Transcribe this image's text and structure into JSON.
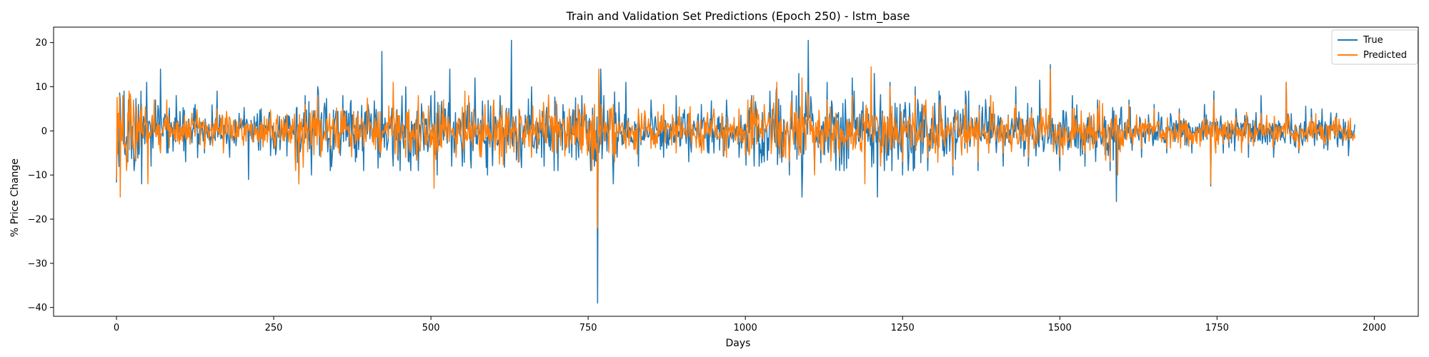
{
  "chart_data": {
    "type": "line",
    "title": "Train and Validation Set Predictions (Epoch 250) - lstm_base",
    "xlabel": "Days",
    "ylabel": "% Price Change",
    "xlim": [
      -100,
      2070
    ],
    "ylim": [
      -42,
      23.5
    ],
    "x_ticks": [
      0,
      250,
      500,
      750,
      1000,
      1250,
      1500,
      1750,
      2000
    ],
    "y_ticks": [
      -40,
      -30,
      -20,
      -10,
      0,
      10,
      20
    ],
    "grid": false,
    "legend_position": "top-right",
    "n_points": 1970,
    "series": [
      {
        "name": "True",
        "color": "#1f77b4",
        "keypoints": [
          [
            0,
            -11.7
          ],
          [
            3,
            -3
          ],
          [
            5,
            8.6
          ],
          [
            8,
            -2
          ],
          [
            12,
            9
          ],
          [
            18,
            -7
          ],
          [
            22,
            8
          ],
          [
            28,
            -9
          ],
          [
            35,
            6
          ],
          [
            40,
            -12
          ],
          [
            48,
            11
          ],
          [
            55,
            -8
          ],
          [
            62,
            7
          ],
          [
            70,
            14
          ],
          [
            80,
            -5
          ],
          [
            95,
            8
          ],
          [
            110,
            -7
          ],
          [
            125,
            6
          ],
          [
            140,
            -5
          ],
          [
            160,
            9
          ],
          [
            180,
            -6
          ],
          [
            195,
            4
          ],
          [
            210,
            -11
          ],
          [
            230,
            5
          ],
          [
            250,
            -4
          ],
          [
            270,
            3
          ],
          [
            285,
            -2
          ],
          [
            290,
            -12
          ],
          [
            300,
            8
          ],
          [
            310,
            -10
          ],
          [
            320,
            10
          ],
          [
            340,
            -9
          ],
          [
            360,
            8
          ],
          [
            380,
            -7
          ],
          [
            400,
            6
          ],
          [
            420,
            -5
          ],
          [
            422,
            18
          ],
          [
            440,
            -8
          ],
          [
            460,
            10
          ],
          [
            480,
            -9
          ],
          [
            500,
            8
          ],
          [
            510,
            -10
          ],
          [
            530,
            14
          ],
          [
            550,
            -8
          ],
          [
            570,
            12
          ],
          [
            590,
            -10
          ],
          [
            610,
            8
          ],
          [
            628,
            20.5
          ],
          [
            640,
            -7
          ],
          [
            660,
            10
          ],
          [
            680,
            -8
          ],
          [
            700,
            6
          ],
          [
            720,
            -5
          ],
          [
            740,
            8
          ],
          [
            760,
            -8
          ],
          [
            765,
            -39
          ],
          [
            770,
            14
          ],
          [
            775,
            8
          ],
          [
            790,
            -12
          ],
          [
            810,
            11
          ],
          [
            830,
            -8
          ],
          [
            850,
            7
          ],
          [
            870,
            -6
          ],
          [
            890,
            8
          ],
          [
            910,
            -7
          ],
          [
            930,
            6
          ],
          [
            950,
            -5
          ],
          [
            970,
            7
          ],
          [
            990,
            -6
          ],
          [
            1010,
            8
          ],
          [
            1030,
            -7
          ],
          [
            1050,
            10
          ],
          [
            1070,
            -10
          ],
          [
            1085,
            13
          ],
          [
            1090,
            -15
          ],
          [
            1100,
            20.5
          ],
          [
            1110,
            -9
          ],
          [
            1130,
            11
          ],
          [
            1150,
            -9
          ],
          [
            1170,
            12
          ],
          [
            1190,
            -10
          ],
          [
            1205,
            13
          ],
          [
            1210,
            -15
          ],
          [
            1230,
            11
          ],
          [
            1250,
            -10
          ],
          [
            1270,
            10
          ],
          [
            1290,
            -9
          ],
          [
            1310,
            8
          ],
          [
            1330,
            -10
          ],
          [
            1350,
            9
          ],
          [
            1370,
            -9
          ],
          [
            1390,
            8
          ],
          [
            1410,
            -8
          ],
          [
            1430,
            10
          ],
          [
            1450,
            -8
          ],
          [
            1468,
            11.5
          ],
          [
            1485,
            15
          ],
          [
            1500,
            -9
          ],
          [
            1520,
            8
          ],
          [
            1540,
            -8
          ],
          [
            1560,
            7
          ],
          [
            1580,
            -9
          ],
          [
            1590,
            -16
          ],
          [
            1610,
            7
          ],
          [
            1630,
            -6
          ],
          [
            1650,
            6
          ],
          [
            1670,
            -5
          ],
          [
            1690,
            5
          ],
          [
            1710,
            -5
          ],
          [
            1730,
            6
          ],
          [
            1740,
            -12.5
          ],
          [
            1745,
            9
          ],
          [
            1760,
            -5
          ],
          [
            1780,
            5
          ],
          [
            1800,
            -6
          ],
          [
            1820,
            8
          ],
          [
            1840,
            -6
          ],
          [
            1860,
            11
          ],
          [
            1880,
            -5
          ],
          [
            1900,
            5
          ],
          [
            1920,
            -4
          ],
          [
            1940,
            4
          ],
          [
            1960,
            -3
          ],
          [
            1970,
            -2
          ]
        ]
      },
      {
        "name": "Predicted",
        "color": "#ff7f0e",
        "keypoints": [
          [
            0,
            -11
          ],
          [
            3,
            4
          ],
          [
            6,
            -15
          ],
          [
            10,
            8
          ],
          [
            15,
            -4
          ],
          [
            20,
            9
          ],
          [
            30,
            -6
          ],
          [
            40,
            6
          ],
          [
            50,
            -12
          ],
          [
            60,
            7
          ],
          [
            70,
            -5
          ],
          [
            80,
            7
          ],
          [
            100,
            -3
          ],
          [
            120,
            4
          ],
          [
            140,
            -4
          ],
          [
            160,
            5
          ],
          [
            170,
            -5
          ],
          [
            180,
            3
          ],
          [
            200,
            -2
          ],
          [
            230,
            2
          ],
          [
            260,
            -2
          ],
          [
            285,
            -9
          ],
          [
            290,
            -12
          ],
          [
            300,
            6
          ],
          [
            320,
            8
          ],
          [
            340,
            -4
          ],
          [
            360,
            5
          ],
          [
            380,
            -3
          ],
          [
            400,
            4
          ],
          [
            420,
            -5
          ],
          [
            440,
            11
          ],
          [
            460,
            -6
          ],
          [
            480,
            8
          ],
          [
            505,
            -13
          ],
          [
            520,
            7
          ],
          [
            540,
            -6
          ],
          [
            560,
            8
          ],
          [
            580,
            -6
          ],
          [
            600,
            7
          ],
          [
            620,
            -5
          ],
          [
            640,
            5
          ],
          [
            660,
            -6
          ],
          [
            680,
            4
          ],
          [
            700,
            -5
          ],
          [
            720,
            5
          ],
          [
            740,
            -5
          ],
          [
            760,
            6
          ],
          [
            765,
            -22
          ],
          [
            767,
            14
          ],
          [
            770,
            -3
          ],
          [
            790,
            6
          ],
          [
            810,
            -4
          ],
          [
            830,
            5
          ],
          [
            850,
            -4
          ],
          [
            870,
            6
          ],
          [
            890,
            -5
          ],
          [
            910,
            4
          ],
          [
            930,
            -5
          ],
          [
            950,
            5
          ],
          [
            970,
            -6
          ],
          [
            990,
            5
          ],
          [
            1010,
            -4
          ],
          [
            1030,
            6
          ],
          [
            1050,
            11
          ],
          [
            1070,
            -7
          ],
          [
            1090,
            12
          ],
          [
            1100,
            8
          ],
          [
            1110,
            -10
          ],
          [
            1130,
            7
          ],
          [
            1150,
            -6
          ],
          [
            1170,
            8
          ],
          [
            1190,
            -12
          ],
          [
            1200,
            14.5
          ],
          [
            1215,
            -8
          ],
          [
            1230,
            10
          ],
          [
            1250,
            -7
          ],
          [
            1270,
            8
          ],
          [
            1290,
            -6
          ],
          [
            1310,
            7
          ],
          [
            1330,
            -8
          ],
          [
            1350,
            6
          ],
          [
            1370,
            -7
          ],
          [
            1390,
            8
          ],
          [
            1410,
            -5
          ],
          [
            1430,
            6
          ],
          [
            1450,
            -6
          ],
          [
            1470,
            5
          ],
          [
            1485,
            14
          ],
          [
            1500,
            -6
          ],
          [
            1520,
            5
          ],
          [
            1540,
            -5
          ],
          [
            1560,
            5
          ],
          [
            1580,
            -7
          ],
          [
            1592,
            -10
          ],
          [
            1610,
            6
          ],
          [
            1630,
            -4
          ],
          [
            1650,
            5
          ],
          [
            1670,
            -4
          ],
          [
            1690,
            4
          ],
          [
            1710,
            -3
          ],
          [
            1730,
            3
          ],
          [
            1740,
            -12
          ],
          [
            1745,
            7
          ],
          [
            1760,
            -3
          ],
          [
            1780,
            3
          ],
          [
            1800,
            -3
          ],
          [
            1820,
            4
          ],
          [
            1840,
            -3
          ],
          [
            1860,
            11
          ],
          [
            1880,
            -4
          ],
          [
            1900,
            3
          ],
          [
            1920,
            -3
          ],
          [
            1940,
            3
          ],
          [
            1960,
            -2
          ],
          [
            1970,
            1
          ]
        ]
      }
    ]
  }
}
